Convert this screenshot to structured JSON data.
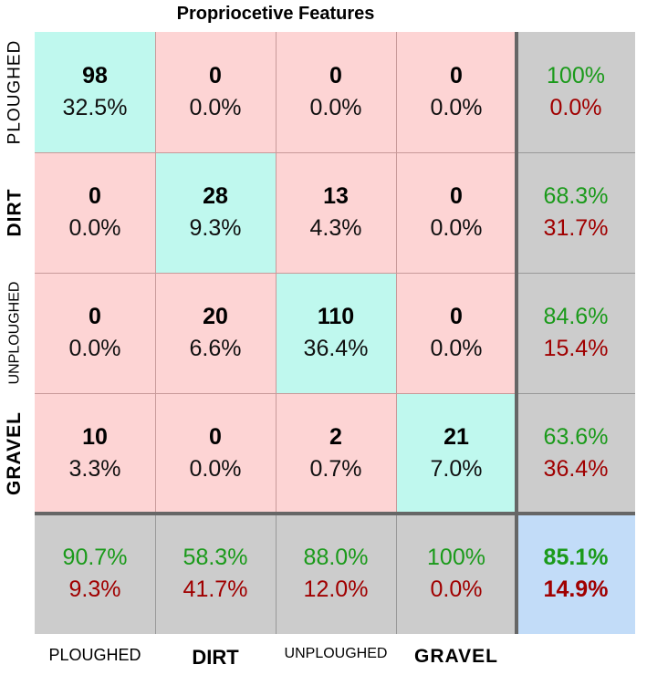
{
  "chart_data": {
    "type": "heatmap",
    "title": "Propriocetive Features",
    "row_labels": [
      "PLOUGHED",
      "DIRT",
      "UNPLOUGHED",
      "GRAVEL"
    ],
    "col_labels": [
      "PLOUGHED",
      "DIRT",
      "UNPLOUGHED",
      "GRAVEL"
    ],
    "cells": [
      [
        {
          "count": "98",
          "pct": "32.5%"
        },
        {
          "count": "0",
          "pct": "0.0%"
        },
        {
          "count": "0",
          "pct": "0.0%"
        },
        {
          "count": "0",
          "pct": "0.0%"
        }
      ],
      [
        {
          "count": "0",
          "pct": "0.0%"
        },
        {
          "count": "28",
          "pct": "9.3%"
        },
        {
          "count": "13",
          "pct": "4.3%"
        },
        {
          "count": "0",
          "pct": "0.0%"
        }
      ],
      [
        {
          "count": "0",
          "pct": "0.0%"
        },
        {
          "count": "20",
          "pct": "6.6%"
        },
        {
          "count": "110",
          "pct": "36.4%"
        },
        {
          "count": "0",
          "pct": "0.0%"
        }
      ],
      [
        {
          "count": "10",
          "pct": "3.3%"
        },
        {
          "count": "0",
          "pct": "0.0%"
        },
        {
          "count": "2",
          "pct": "0.7%"
        },
        {
          "count": "21",
          "pct": "7.0%"
        }
      ]
    ],
    "row_summary": [
      {
        "correct": "100%",
        "error": "0.0%"
      },
      {
        "correct": "68.3%",
        "error": "31.7%"
      },
      {
        "correct": "84.6%",
        "error": "15.4%"
      },
      {
        "correct": "63.6%",
        "error": "36.4%"
      }
    ],
    "col_summary": [
      {
        "correct": "90.7%",
        "error": "9.3%"
      },
      {
        "correct": "58.3%",
        "error": "41.7%"
      },
      {
        "correct": "88.0%",
        "error": "12.0%"
      },
      {
        "correct": "100%",
        "error": "0.0%"
      }
    ],
    "overall": {
      "correct": "85.1%",
      "error": "14.9%"
    }
  },
  "colors": {
    "diagonal": "#bff8ee",
    "off_diagonal": "#fdd4d4",
    "summary": "#cccccc",
    "overall": "#c2dcf8",
    "correct_text": "#1a9a1a",
    "error_text": "#a00000"
  }
}
